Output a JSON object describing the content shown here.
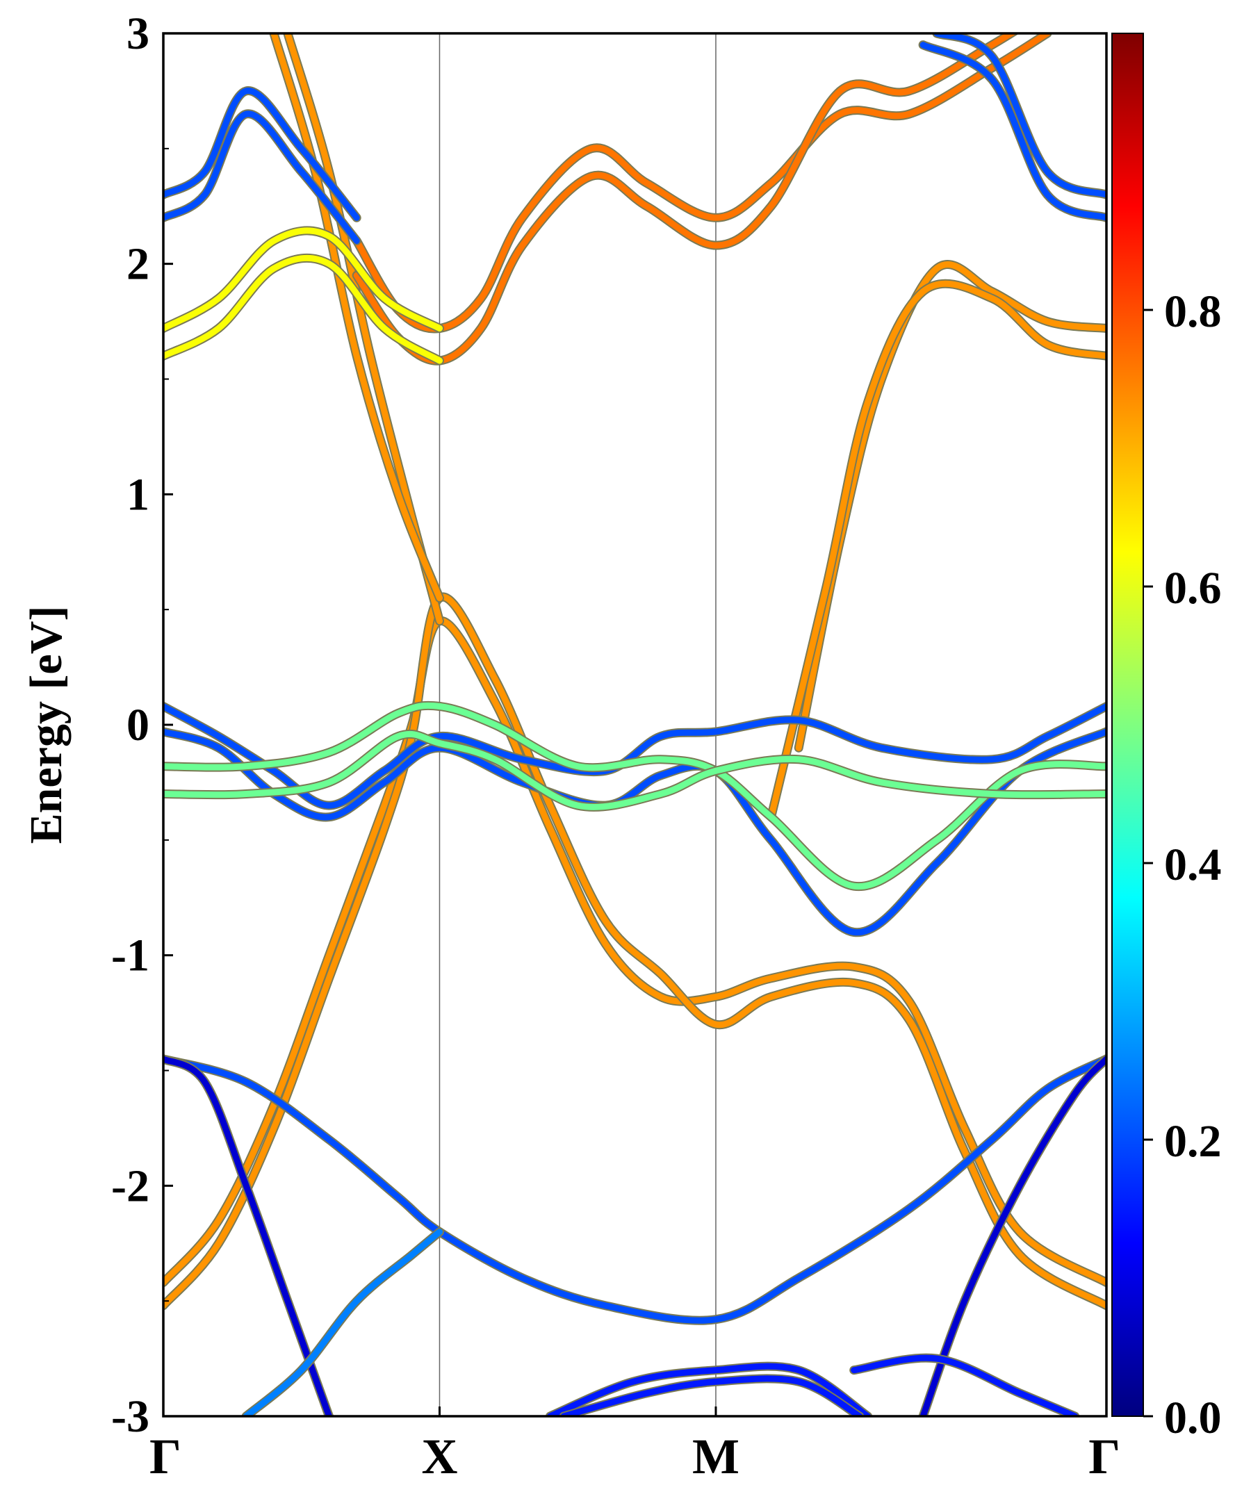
{
  "chart_data": {
    "type": "line",
    "title": "",
    "xlabel": "",
    "ylabel": "Energy [eV]",
    "ylim": [
      -3,
      3
    ],
    "yticks": [
      -3,
      -2,
      -1,
      0,
      1,
      2,
      3
    ],
    "ytick_labels": [
      "-3",
      "-2",
      "-1",
      "0",
      "1",
      "2",
      "3"
    ],
    "k_path": [
      "Γ",
      "X",
      "M",
      "Γ"
    ],
    "k_points": [
      0,
      1,
      2,
      3.414
    ],
    "colorbar": {
      "colormap": "jet",
      "range": [
        0,
        1
      ],
      "ticks": [
        0.0,
        0.2,
        0.4,
        0.6,
        0.8
      ],
      "tick_labels": [
        "0.0",
        "0.2",
        "0.4",
        "0.6",
        "0.8"
      ]
    },
    "grid": false,
    "legend": "none",
    "series": [
      {
        "weight": 0.73,
        "points": [
          [
            0.0,
            -2.42
          ],
          [
            0.2,
            -2.15
          ],
          [
            0.4,
            -1.65
          ],
          [
            0.6,
            -1.0
          ],
          [
            0.8,
            -0.35
          ],
          [
            0.9,
            0.0
          ],
          [
            1.0,
            0.45
          ],
          [
            1.2,
            0.1
          ],
          [
            1.4,
            -0.45
          ],
          [
            1.6,
            -0.95
          ],
          [
            1.8,
            -1.18
          ],
          [
            2.0,
            -1.18
          ],
          [
            2.2,
            -1.1
          ],
          [
            2.5,
            -1.05
          ],
          [
            2.7,
            -1.2
          ],
          [
            2.9,
            -1.75
          ],
          [
            3.1,
            -2.2
          ],
          [
            3.414,
            -2.42
          ]
        ]
      },
      {
        "weight": 0.73,
        "points": [
          [
            0.0,
            -2.52
          ],
          [
            0.2,
            -2.25
          ],
          [
            0.4,
            -1.75
          ],
          [
            0.6,
            -1.1
          ],
          [
            0.8,
            -0.45
          ],
          [
            0.9,
            -0.05
          ],
          [
            1.0,
            0.55
          ],
          [
            1.2,
            0.2
          ],
          [
            1.4,
            -0.35
          ],
          [
            1.6,
            -0.85
          ],
          [
            1.8,
            -1.08
          ],
          [
            2.0,
            -1.3
          ],
          [
            2.2,
            -1.18
          ],
          [
            2.5,
            -1.12
          ],
          [
            2.7,
            -1.28
          ],
          [
            2.9,
            -1.85
          ],
          [
            3.1,
            -2.3
          ],
          [
            3.414,
            -2.52
          ]
        ]
      },
      {
        "weight": 0.73,
        "points": [
          [
            0.45,
            3.0
          ],
          [
            0.6,
            2.4
          ],
          [
            0.75,
            1.6
          ],
          [
            0.9,
            0.9
          ],
          [
            1.0,
            0.45
          ]
        ]
      },
      {
        "weight": 0.73,
        "points": [
          [
            0.4,
            3.0
          ],
          [
            0.55,
            2.4
          ],
          [
            0.7,
            1.6
          ],
          [
            0.85,
            1.0
          ],
          [
            1.0,
            0.55
          ]
        ]
      },
      {
        "weight": 0.73,
        "points": [
          [
            2.3,
            -0.1
          ],
          [
            2.45,
            0.8
          ],
          [
            2.6,
            1.5
          ],
          [
            2.8,
            1.98
          ],
          [
            3.0,
            1.88
          ],
          [
            3.2,
            1.75
          ],
          [
            3.414,
            1.72
          ]
        ]
      },
      {
        "weight": 0.73,
        "points": [
          [
            2.2,
            -0.4
          ],
          [
            2.4,
            0.6
          ],
          [
            2.55,
            1.4
          ],
          [
            2.75,
            1.88
          ],
          [
            3.0,
            1.85
          ],
          [
            3.2,
            1.65
          ],
          [
            3.414,
            1.6
          ]
        ]
      },
      {
        "weight": 0.76,
        "points": [
          [
            0.7,
            2.1
          ],
          [
            0.85,
            1.8
          ],
          [
            1.0,
            1.72
          ],
          [
            1.15,
            1.85
          ],
          [
            1.3,
            2.2
          ],
          [
            1.55,
            2.5
          ],
          [
            1.75,
            2.35
          ],
          [
            2.0,
            2.2
          ],
          [
            2.2,
            2.35
          ],
          [
            2.45,
            2.65
          ],
          [
            2.7,
            2.65
          ],
          [
            3.0,
            2.85
          ],
          [
            3.2,
            3.0
          ]
        ]
      },
      {
        "weight": 0.76,
        "points": [
          [
            0.7,
            1.95
          ],
          [
            0.85,
            1.68
          ],
          [
            1.0,
            1.58
          ],
          [
            1.15,
            1.72
          ],
          [
            1.3,
            2.08
          ],
          [
            1.55,
            2.38
          ],
          [
            1.75,
            2.25
          ],
          [
            2.0,
            2.08
          ],
          [
            2.2,
            2.25
          ],
          [
            2.45,
            2.75
          ],
          [
            2.7,
            2.75
          ],
          [
            3.0,
            2.95
          ],
          [
            3.2,
            3.1
          ]
        ]
      },
      {
        "weight": 0.62,
        "points": [
          [
            0.0,
            1.72
          ],
          [
            0.2,
            1.85
          ],
          [
            0.4,
            2.1
          ],
          [
            0.6,
            2.12
          ],
          [
            0.8,
            1.85
          ],
          [
            1.0,
            1.72
          ]
        ]
      },
      {
        "weight": 0.62,
        "points": [
          [
            0.0,
            1.6
          ],
          [
            0.2,
            1.72
          ],
          [
            0.4,
            1.98
          ],
          [
            0.6,
            2.0
          ],
          [
            0.8,
            1.72
          ],
          [
            1.0,
            1.58
          ]
        ]
      },
      {
        "weight": 0.2,
        "points": [
          [
            0.0,
            2.3
          ],
          [
            0.15,
            2.4
          ],
          [
            0.3,
            2.75
          ],
          [
            0.5,
            2.5
          ],
          [
            0.7,
            2.2
          ]
        ]
      },
      {
        "weight": 0.2,
        "points": [
          [
            0.0,
            2.2
          ],
          [
            0.15,
            2.3
          ],
          [
            0.3,
            2.65
          ],
          [
            0.5,
            2.4
          ],
          [
            0.7,
            2.1
          ]
        ]
      },
      {
        "weight": 0.2,
        "points": [
          [
            2.8,
            3.0
          ],
          [
            3.0,
            2.9
          ],
          [
            3.2,
            2.4
          ],
          [
            3.414,
            2.3
          ]
        ]
      },
      {
        "weight": 0.2,
        "points": [
          [
            2.75,
            2.95
          ],
          [
            3.0,
            2.8
          ],
          [
            3.2,
            2.3
          ],
          [
            3.414,
            2.2
          ]
        ]
      },
      {
        "weight": 0.2,
        "points": [
          [
            0.0,
            0.08
          ],
          [
            0.2,
            -0.05
          ],
          [
            0.4,
            -0.2
          ],
          [
            0.6,
            -0.35
          ],
          [
            0.8,
            -0.2
          ],
          [
            1.0,
            -0.05
          ],
          [
            1.3,
            -0.15
          ],
          [
            1.6,
            -0.2
          ],
          [
            1.8,
            -0.05
          ],
          [
            2.0,
            -0.03
          ],
          [
            2.3,
            0.02
          ],
          [
            2.6,
            -0.1
          ],
          [
            3.0,
            -0.15
          ],
          [
            3.2,
            -0.05
          ],
          [
            3.414,
            0.08
          ]
        ]
      },
      {
        "weight": 0.2,
        "points": [
          [
            0.0,
            -0.03
          ],
          [
            0.2,
            -0.1
          ],
          [
            0.4,
            -0.3
          ],
          [
            0.6,
            -0.4
          ],
          [
            0.8,
            -0.25
          ],
          [
            1.0,
            -0.1
          ],
          [
            1.3,
            -0.25
          ],
          [
            1.6,
            -0.35
          ],
          [
            1.8,
            -0.22
          ],
          [
            2.0,
            -0.2
          ],
          [
            2.2,
            -0.5
          ],
          [
            2.5,
            -0.9
          ],
          [
            2.8,
            -0.6
          ],
          [
            3.1,
            -0.2
          ],
          [
            3.414,
            -0.03
          ]
        ]
      },
      {
        "weight": 0.48,
        "points": [
          [
            0.0,
            -0.18
          ],
          [
            0.3,
            -0.18
          ],
          [
            0.6,
            -0.12
          ],
          [
            0.85,
            0.05
          ],
          [
            1.0,
            0.08
          ],
          [
            1.2,
            0.0
          ],
          [
            1.5,
            -0.18
          ],
          [
            1.8,
            -0.15
          ],
          [
            2.0,
            -0.2
          ],
          [
            2.2,
            -0.4
          ],
          [
            2.5,
            -0.7
          ],
          [
            2.8,
            -0.5
          ],
          [
            3.1,
            -0.2
          ],
          [
            3.414,
            -0.18
          ]
        ]
      },
      {
        "weight": 0.48,
        "points": [
          [
            0.0,
            -0.3
          ],
          [
            0.3,
            -0.3
          ],
          [
            0.6,
            -0.25
          ],
          [
            0.85,
            -0.05
          ],
          [
            1.0,
            -0.08
          ],
          [
            1.2,
            -0.15
          ],
          [
            1.5,
            -0.35
          ],
          [
            1.8,
            -0.3
          ],
          [
            2.0,
            -0.2
          ],
          [
            2.3,
            -0.15
          ],
          [
            2.6,
            -0.25
          ],
          [
            3.0,
            -0.3
          ],
          [
            3.414,
            -0.3
          ]
        ]
      },
      {
        "weight": 0.2,
        "points": [
          [
            0.0,
            -1.45
          ],
          [
            0.3,
            -1.55
          ],
          [
            0.6,
            -1.8
          ],
          [
            0.85,
            -2.05
          ],
          [
            1.0,
            -2.2
          ],
          [
            1.3,
            -2.4
          ],
          [
            1.6,
            -2.52
          ],
          [
            2.0,
            -2.58
          ],
          [
            2.3,
            -2.4
          ],
          [
            2.7,
            -2.1
          ],
          [
            3.0,
            -1.8
          ],
          [
            3.2,
            -1.58
          ],
          [
            3.414,
            -1.45
          ]
        ]
      },
      {
        "weight": 0.08,
        "points": [
          [
            0.0,
            -1.45
          ],
          [
            0.15,
            -1.55
          ],
          [
            0.3,
            -2.0
          ],
          [
            0.45,
            -2.5
          ],
          [
            0.6,
            -3.0
          ]
        ]
      },
      {
        "weight": 0.08,
        "points": [
          [
            2.75,
            -3.0
          ],
          [
            2.9,
            -2.5
          ],
          [
            3.1,
            -2.0
          ],
          [
            3.3,
            -1.6
          ],
          [
            3.414,
            -1.45
          ]
        ]
      },
      {
        "weight": 0.25,
        "points": [
          [
            0.3,
            -3.0
          ],
          [
            0.5,
            -2.8
          ],
          [
            0.7,
            -2.5
          ],
          [
            0.9,
            -2.3
          ],
          [
            1.0,
            -2.2
          ]
        ]
      },
      {
        "weight": 0.15,
        "points": [
          [
            1.4,
            -3.0
          ],
          [
            1.7,
            -2.85
          ],
          [
            2.0,
            -2.8
          ],
          [
            2.3,
            -2.8
          ],
          [
            2.55,
            -3.0
          ]
        ]
      },
      {
        "weight": 0.15,
        "points": [
          [
            1.45,
            -3.0
          ],
          [
            1.75,
            -2.9
          ],
          [
            2.0,
            -2.85
          ],
          [
            2.3,
            -2.85
          ],
          [
            2.52,
            -3.0
          ]
        ]
      },
      {
        "weight": 0.15,
        "points": [
          [
            2.5,
            -2.8
          ],
          [
            2.8,
            -2.75
          ],
          [
            3.1,
            -2.9
          ],
          [
            3.3,
            -3.0
          ]
        ]
      }
    ]
  }
}
